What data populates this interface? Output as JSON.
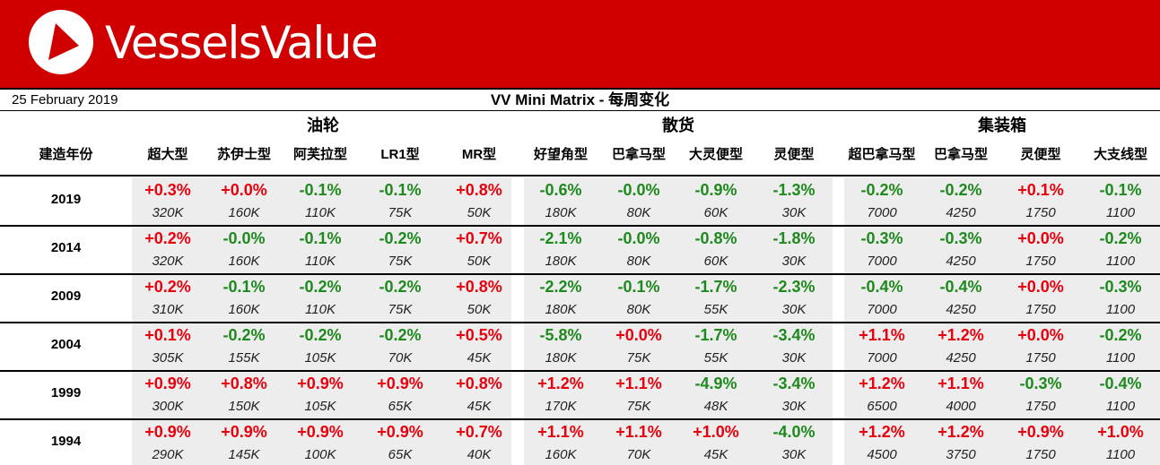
{
  "brand": {
    "name": "VesselsValue",
    "color": "#d00000"
  },
  "report": {
    "date": "25 February 2019",
    "title": "VV Mini Matrix - 每周变化"
  },
  "groups": [
    {
      "label": "油轮"
    },
    {
      "label": "散货"
    },
    {
      "label": "集装箱"
    }
  ],
  "year_header": "建造年份",
  "columns": [
    {
      "label": "超大型"
    },
    {
      "label": "苏伊士型"
    },
    {
      "label": "阿芙拉型"
    },
    {
      "label": "LR1型"
    },
    {
      "label": "MR型"
    },
    {
      "label": "好望角型"
    },
    {
      "label": "巴拿马型"
    },
    {
      "label": "大灵便型"
    },
    {
      "label": "灵便型"
    },
    {
      "label": "超巴拿马型"
    },
    {
      "label": "巴拿马型"
    },
    {
      "label": "灵便型"
    },
    {
      "label": "大支线型"
    }
  ],
  "colors": {
    "positive": "#e8000d",
    "negative": "#1e8a1e",
    "cell_background": "#ededed"
  },
  "rows": [
    {
      "year": "2019",
      "changes": [
        "+0.3%",
        "+0.0%",
        "-0.1%",
        "-0.1%",
        "+0.8%",
        "-0.6%",
        "-0.0%",
        "-0.9%",
        "-1.3%",
        "-0.2%",
        "-0.2%",
        "+0.1%",
        "-0.1%"
      ],
      "sizes": [
        "320K",
        "160K",
        "110K",
        "75K",
        "50K",
        "180K",
        "80K",
        "60K",
        "30K",
        "7000",
        "4250",
        "1750",
        "1100"
      ]
    },
    {
      "year": "2014",
      "changes": [
        "+0.2%",
        "-0.0%",
        "-0.1%",
        "-0.2%",
        "+0.7%",
        "-2.1%",
        "-0.0%",
        "-0.8%",
        "-1.8%",
        "-0.3%",
        "-0.3%",
        "+0.0%",
        "-0.2%"
      ],
      "sizes": [
        "320K",
        "160K",
        "110K",
        "75K",
        "50K",
        "180K",
        "80K",
        "60K",
        "30K",
        "7000",
        "4250",
        "1750",
        "1100"
      ]
    },
    {
      "year": "2009",
      "changes": [
        "+0.2%",
        "-0.1%",
        "-0.2%",
        "-0.2%",
        "+0.8%",
        "-2.2%",
        "-0.1%",
        "-1.7%",
        "-2.3%",
        "-0.4%",
        "-0.4%",
        "+0.0%",
        "-0.3%"
      ],
      "sizes": [
        "310K",
        "160K",
        "110K",
        "75K",
        "50K",
        "180K",
        "80K",
        "55K",
        "30K",
        "7000",
        "4250",
        "1750",
        "1100"
      ]
    },
    {
      "year": "2004",
      "changes": [
        "+0.1%",
        "-0.2%",
        "-0.2%",
        "-0.2%",
        "+0.5%",
        "-5.8%",
        "+0.0%",
        "-1.7%",
        "-3.4%",
        "+1.1%",
        "+1.2%",
        "+0.0%",
        "-0.2%"
      ],
      "sizes": [
        "305K",
        "155K",
        "105K",
        "70K",
        "45K",
        "180K",
        "75K",
        "55K",
        "30K",
        "7000",
        "4250",
        "1750",
        "1100"
      ]
    },
    {
      "year": "1999",
      "changes": [
        "+0.9%",
        "+0.8%",
        "+0.9%",
        "+0.9%",
        "+0.8%",
        "+1.2%",
        "+1.1%",
        "-4.9%",
        "-3.4%",
        "+1.2%",
        "+1.1%",
        "-0.3%",
        "-0.4%"
      ],
      "sizes": [
        "300K",
        "150K",
        "105K",
        "65K",
        "45K",
        "170K",
        "75K",
        "48K",
        "30K",
        "6500",
        "4000",
        "1750",
        "1100"
      ]
    },
    {
      "year": "1994",
      "changes": [
        "+0.9%",
        "+0.9%",
        "+0.9%",
        "+0.9%",
        "+0.7%",
        "+1.1%",
        "+1.1%",
        "+1.0%",
        "-4.0%",
        "+1.2%",
        "+1.2%",
        "+0.9%",
        "+1.0%"
      ],
      "sizes": [
        "290K",
        "145K",
        "100K",
        "65K",
        "40K",
        "160K",
        "70K",
        "45K",
        "30K",
        "4500",
        "3750",
        "1750",
        "1100"
      ]
    }
  ]
}
